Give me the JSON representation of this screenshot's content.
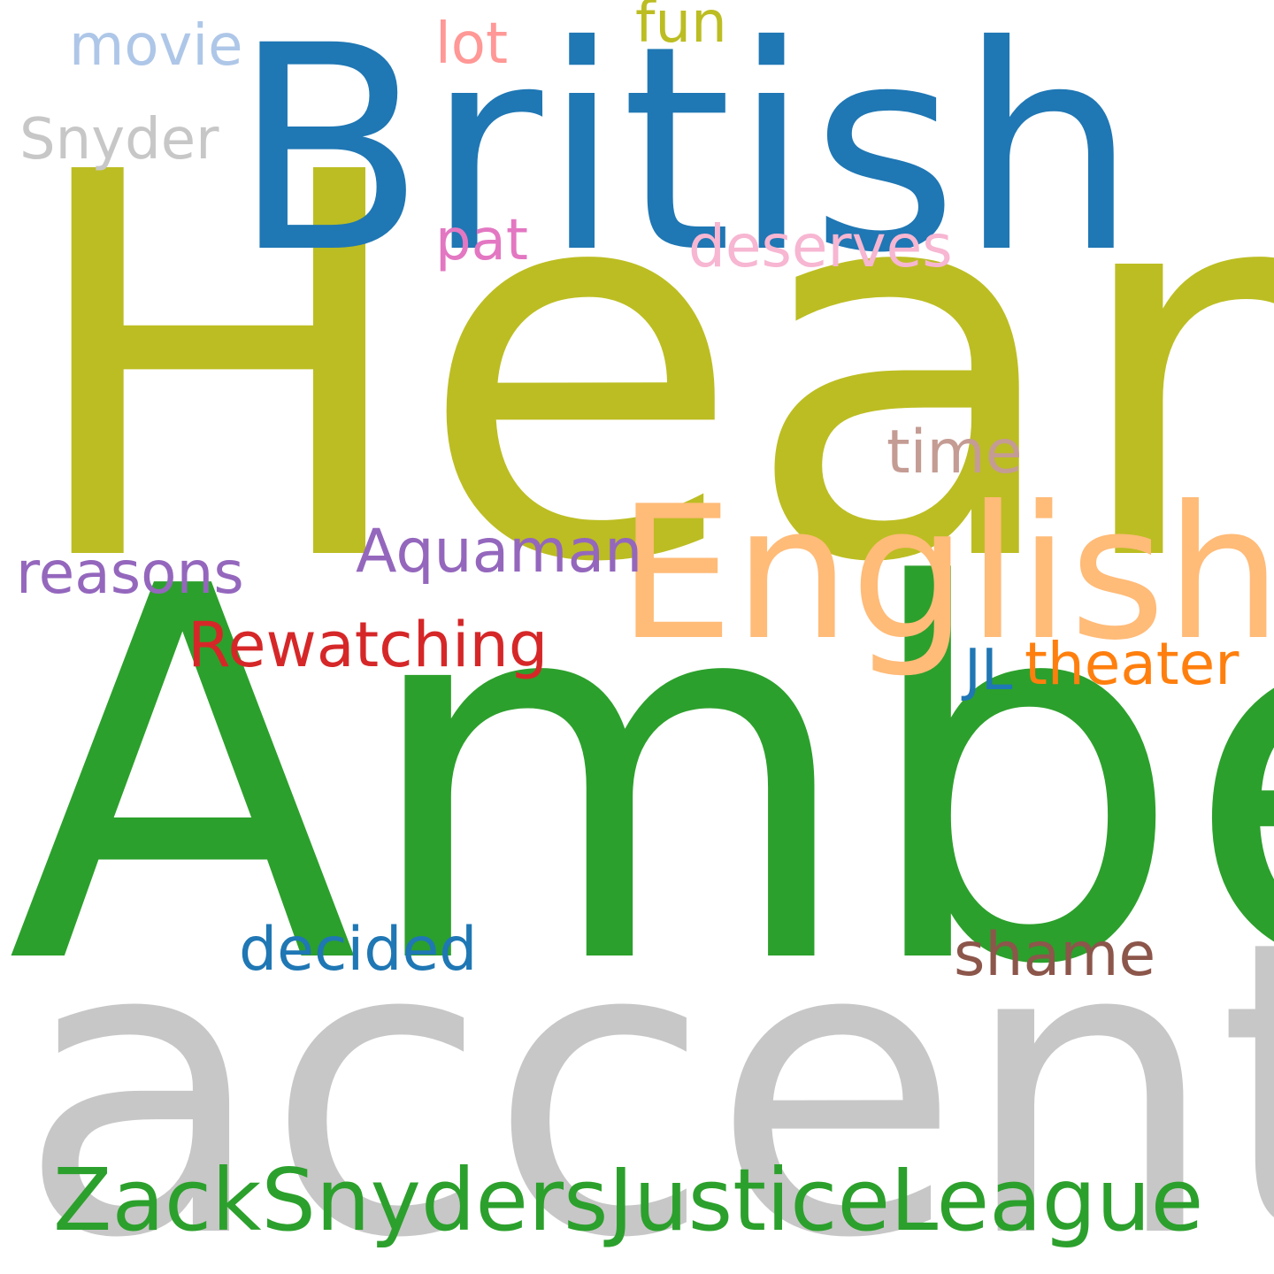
{
  "words": {
    "heard": {
      "text": "Heard",
      "color": "#bcbd22"
    },
    "amber": {
      "text": "Amber",
      "color": "#2ca02c"
    },
    "accent": {
      "text": "accent",
      "color": "#c7c7c7"
    },
    "british": {
      "text": "British",
      "color": "#1f77b4"
    },
    "english": {
      "text": "English",
      "color": "#ffbb78"
    },
    "zack_snyders_justice_league": {
      "text": "ZackSnydersJusticeLeague",
      "color": "#2ca02c"
    },
    "rewatching": {
      "text": "Rewatching",
      "color": "#d62728"
    },
    "theater": {
      "text": "theater",
      "color": "#ff7f0e"
    },
    "aquaman": {
      "text": "Aquaman",
      "color": "#9467bd"
    },
    "deserves": {
      "text": "deserves",
      "color": "#f7b6d2"
    },
    "decided": {
      "text": "decided",
      "color": "#1f77b4"
    },
    "shame": {
      "text": "shame",
      "color": "#8c564b"
    },
    "reasons": {
      "text": "reasons",
      "color": "#9467bd"
    },
    "time": {
      "text": "time",
      "color": "#c49c94"
    },
    "snyder": {
      "text": "Snyder",
      "color": "#c7c7c7"
    },
    "movie": {
      "text": "movie",
      "color": "#aec7e8"
    },
    "lot": {
      "text": "lot",
      "color": "#ff9896"
    },
    "fun": {
      "text": "fun",
      "color": "#bcbd22"
    },
    "pat": {
      "text": "pat",
      "color": "#e377c2"
    },
    "jl": {
      "text": "JL",
      "color": "#1f77b4"
    }
  }
}
